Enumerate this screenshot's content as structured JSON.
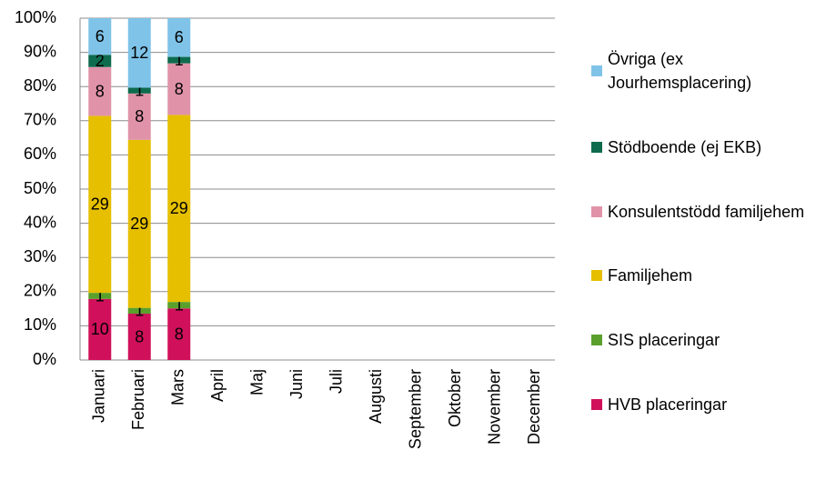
{
  "chart_data": {
    "type": "bar",
    "stacked_percent": true,
    "categories": [
      "Januari",
      "Februari",
      "Mars",
      "April",
      "Maj",
      "Juni",
      "Juli",
      "Augusti",
      "September",
      "Oktober",
      "November",
      "December"
    ],
    "series": [
      {
        "name": "HVB placeringar",
        "color": "#d0105a",
        "values": [
          10,
          8,
          8,
          null,
          null,
          null,
          null,
          null,
          null,
          null,
          null,
          null
        ]
      },
      {
        "name": "SIS placeringar",
        "color": "#5aa02c",
        "values": [
          1,
          1,
          1,
          null,
          null,
          null,
          null,
          null,
          null,
          null,
          null,
          null
        ]
      },
      {
        "name": "Familjehem",
        "color": "#e6bf00",
        "values": [
          29,
          29,
          29,
          null,
          null,
          null,
          null,
          null,
          null,
          null,
          null,
          null
        ]
      },
      {
        "name": "Konsulentstödd familjehem",
        "color": "#e093a8",
        "values": [
          8,
          8,
          8,
          null,
          null,
          null,
          null,
          null,
          null,
          null,
          null,
          null
        ]
      },
      {
        "name": "Stödboende (ej EKB)",
        "color": "#0e6b4e",
        "values": [
          2,
          1,
          1,
          null,
          null,
          null,
          null,
          null,
          null,
          null,
          null,
          null
        ]
      },
      {
        "name": "Övriga (ex Jourhemsplacering)",
        "color": "#7fc3e8",
        "values": [
          6,
          12,
          6,
          null,
          null,
          null,
          null,
          null,
          null,
          null,
          null,
          null
        ]
      }
    ],
    "ylim": [
      0,
      100
    ],
    "yticks": [
      {
        "value": 0,
        "label": "0%"
      },
      {
        "value": 10,
        "label": "10%"
      },
      {
        "value": 20,
        "label": "20%"
      },
      {
        "value": 30,
        "label": "30%"
      },
      {
        "value": 40,
        "label": "40%"
      },
      {
        "value": 50,
        "label": "50%"
      },
      {
        "value": 60,
        "label": "60%"
      },
      {
        "value": 70,
        "label": "70%"
      },
      {
        "value": 80,
        "label": "80%"
      },
      {
        "value": 90,
        "label": "90%"
      },
      {
        "value": 100,
        "label": "100%"
      }
    ],
    "grid": true,
    "legend": "right"
  }
}
